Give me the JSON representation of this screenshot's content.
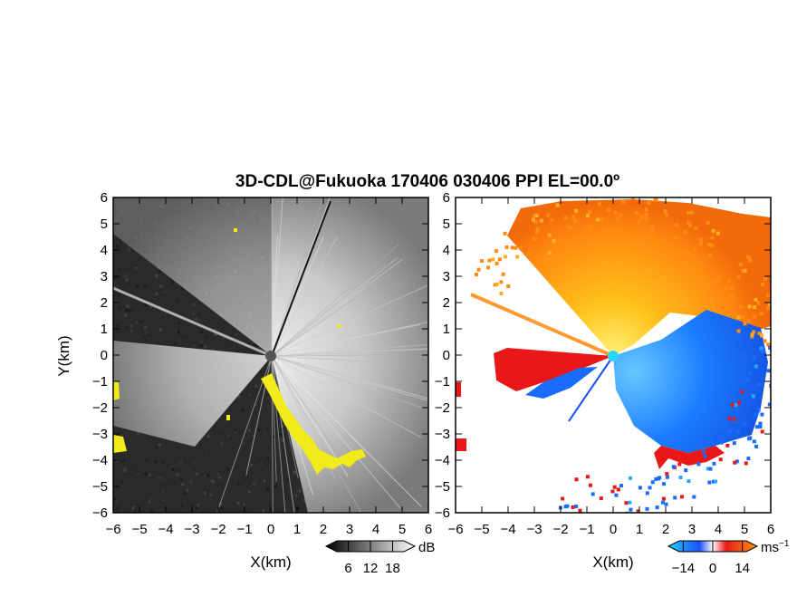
{
  "colors": {
    "refl_background": "#2a2a2a",
    "refl_highlight": "#e6e6e6",
    "refl_echo": "#f2ea1a",
    "vel_background": "#ffffff",
    "vel_towards": "#1a6cff",
    "vel_away": "#ff8a10",
    "vel_fold_red": "#e81818"
  },
  "chart_data": [
    {
      "type": "heatmap",
      "panel": "reflectivity",
      "title": "3D-CDL@Fukuoka 170406 030406 PPI EL=00.0º",
      "xlabel": "X(km)",
      "ylabel": "Y(km)",
      "xlim": [
        -6,
        6
      ],
      "ylim": [
        -6,
        6
      ],
      "x_ticks": [
        "−6",
        "−5",
        "−4",
        "−3",
        "−2",
        "−1",
        "0",
        "1",
        "2",
        "3",
        "4",
        "5",
        "6"
      ],
      "y_ticks": [
        "6",
        "5",
        "4",
        "3",
        "2",
        "1",
        "0",
        "−1",
        "−2",
        "−3",
        "−4",
        "−5",
        "−6"
      ],
      "colorbar": {
        "unit": "dB",
        "ticks": [
          "6",
          "12",
          "18"
        ],
        "range": [
          0,
          24
        ]
      }
    },
    {
      "type": "heatmap",
      "panel": "doppler_velocity",
      "xlabel": "X(km)",
      "xlim": [
        -6,
        6
      ],
      "ylim": [
        -6,
        6
      ],
      "x_ticks": [
        "−6",
        "−5",
        "−4",
        "−3",
        "−2",
        "−1",
        "0",
        "1",
        "2",
        "3",
        "4",
        "5",
        "6"
      ],
      "y_ticks": [
        "6",
        "5",
        "4",
        "3",
        "2",
        "1",
        "0",
        "−1",
        "−2",
        "−3",
        "−4",
        "−5",
        "−6"
      ],
      "colorbar": {
        "unit": "ms",
        "unit_exponent": "−1",
        "ticks": [
          "−14",
          "0",
          "14"
        ],
        "range": [
          -21,
          21
        ]
      }
    }
  ]
}
